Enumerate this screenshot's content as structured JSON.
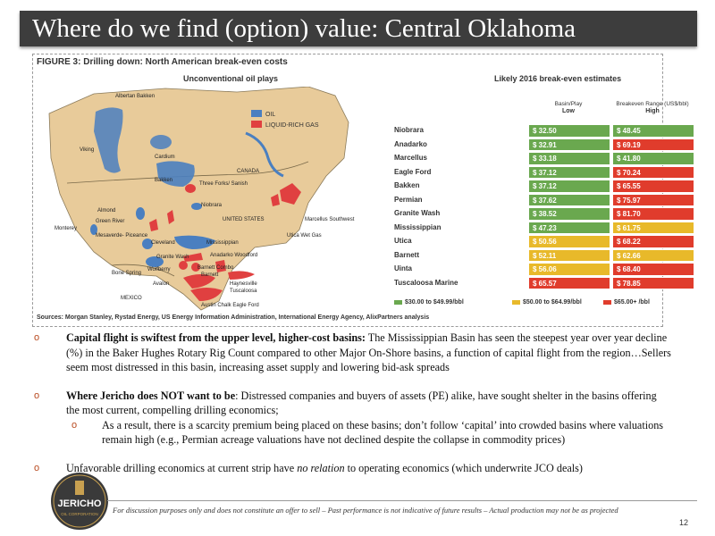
{
  "title": "Where do we find (option) value: Central Oklahoma",
  "figure": {
    "title": "FIGURE 3: Drilling down: North American break-even costs",
    "map_heading": "Unconventional oil plays",
    "map_legend": {
      "oil": "OIL",
      "liquid": "LIQUID-RICH GAS"
    },
    "map_labels": {
      "albertan_bakken": "Albertan Bakken",
      "viking": "Viking",
      "cardium": "Cardium",
      "canada": "CANADA",
      "bakken": "Bakken",
      "three_forks": "Three Forks/ Sanish",
      "almond": "Almond",
      "niobrara": "Niobrara",
      "monterey": "Monterey",
      "green_river": "Green River",
      "mesaverde": "Mesaverde- Piceance",
      "united_states": "UNITED STATES",
      "marcellus": "Marcellus Southwest",
      "utica": "Utica Wet Gas",
      "cleveland": "Cleveland",
      "mississippian": "Mississippian",
      "granite_wash": "Granite Wash",
      "anadarko": "Anadarko Woodford",
      "bone_spring": "Bone Spring",
      "wolfberry": "Wolfberry",
      "barnett_combo": "Barnett Combo",
      "barnett": "Barnett",
      "avalon": "Avalon",
      "haynesville": "Haynesville",
      "tuscaloosa": "Tuscaloosa",
      "mexico": "MEXICO",
      "austin_chalk": "Austin Chalk Eagle Ford"
    },
    "breakeven_heading": "Likely 2016 break-even estimates",
    "col_low_head": "Basin/Play",
    "col_low_sub": "Low",
    "col_high_head": "Breakeven Range (US$/bbl)",
    "col_high_sub": "High",
    "rows": [
      {
        "name": "Niobrara",
        "low": "$ 32.50",
        "high": "$ 48.45",
        "low_color": "#6aa84f",
        "high_color": "#6aa84f"
      },
      {
        "name": "Anadarko",
        "low": "$ 32.91",
        "high": "$ 69.19",
        "low_color": "#6aa84f",
        "high_color": "#e03c2c"
      },
      {
        "name": "Marcellus",
        "low": "$ 33.18",
        "high": "$ 41.80",
        "low_color": "#6aa84f",
        "high_color": "#6aa84f"
      },
      {
        "name": "Eagle Ford",
        "low": "$ 37.12",
        "high": "$ 70.24",
        "low_color": "#6aa84f",
        "high_color": "#e03c2c"
      },
      {
        "name": "Bakken",
        "low": "$ 37.12",
        "high": "$ 65.55",
        "low_color": "#6aa84f",
        "high_color": "#e03c2c"
      },
      {
        "name": "Permian",
        "low": "$ 37.62",
        "high": "$ 75.97",
        "low_color": "#6aa84f",
        "high_color": "#e03c2c"
      },
      {
        "name": "Granite Wash",
        "low": "$ 38.52",
        "high": "$ 81.70",
        "low_color": "#6aa84f",
        "high_color": "#e03c2c"
      },
      {
        "name": "Mississippian",
        "low": "$ 47.23",
        "high": "$ 61.75",
        "low_color": "#6aa84f",
        "high_color": "#e8b92a"
      },
      {
        "name": "Utica",
        "low": "$ 50.56",
        "high": "$ 68.22",
        "low_color": "#e8b92a",
        "high_color": "#e03c2c"
      },
      {
        "name": "Barnett",
        "low": "$ 52.11",
        "high": "$ 62.66",
        "low_color": "#e8b92a",
        "high_color": "#e8b92a"
      },
      {
        "name": "Uinta",
        "low": "$ 56.06",
        "high": "$ 68.40",
        "low_color": "#e8b92a",
        "high_color": "#e03c2c"
      },
      {
        "name": "Tuscaloosa Marine",
        "low": "$ 65.57",
        "high": "$ 78.85",
        "low_color": "#e03c2c",
        "high_color": "#e03c2c"
      }
    ],
    "legend": [
      {
        "label": "$30.00 to $49.99/bbl",
        "color": "#6aa84f"
      },
      {
        "label": "$50.00 to $64.99/bbl",
        "color": "#e8b92a"
      },
      {
        "label": "$65.00+ /bbl",
        "color": "#e03c2c"
      }
    ],
    "sources": "Sources: Morgan Stanley, Rystad Energy, US Energy Information Administration, International Energy Agency, AlixPartners analysis"
  },
  "bullets": {
    "b1_bold": "Capital flight is swiftest from the upper level, higher-cost basins:",
    "b1_text": " The Mississippian Basin has seen the steepest year over year decline (%) in the Baker Hughes Rotary Rig Count compared to other Major On-Shore basins, a function of capital flight from the region…Sellers seem most distressed in this basin, increasing asset supply and lowering bid-ask spreads",
    "b2_bold": "Where Jericho does NOT want to be",
    "b2_text": ": Distressed companies and buyers of assets (PE) alike, have sought shelter in the basins offering the most current, compelling drilling economics;",
    "b2_sub": "As a result, there is a scarcity premium being placed on these basins; don’t follow ‘capital’ into crowded basins where valuations remain high (e.g., Permian acreage valuations have not declined despite the collapse in commodity prices)",
    "b3_pre": "Unfavorable drilling economics at current strip have ",
    "b3_em": "no relation",
    "b3_post": " to operating economics (which underwrite JCO deals)",
    "marker": "o"
  },
  "logo": {
    "name": "JERICHO",
    "sub": "OIL CORPORATION"
  },
  "footer": "For discussion purposes only and does not constitute an offer to sell – Past performance is not indicative of future results – Actual production may not be as projected",
  "page_number": "12"
}
